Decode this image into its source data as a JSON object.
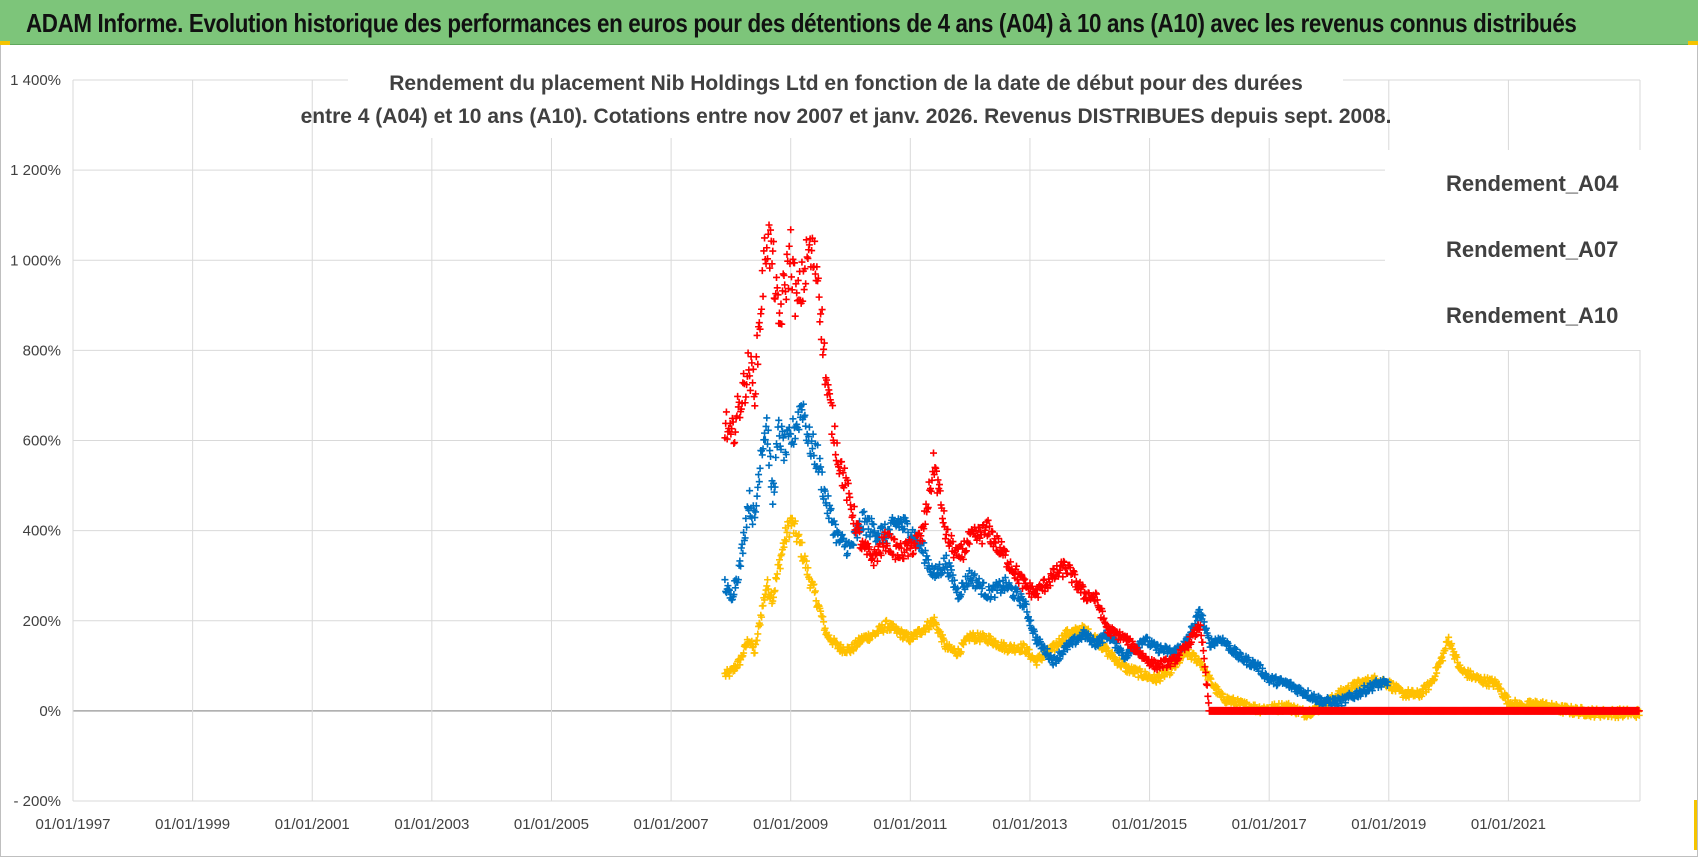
{
  "banner": {
    "title": "ADAM Informe. Evolution historique des performances en euros pour des détentions de 4 ans (A04) à 10 ans (A10) avec les revenus connus distribués"
  },
  "colors": {
    "banner_bg": "#7dc57a",
    "corner_accent": "#f5c400",
    "a04": "#ffc000",
    "a07": "#0070c0",
    "a10": "#ff0000",
    "grid": "#d9d9d9"
  },
  "chart_data": {
    "type": "scatter",
    "title_line1": "Rendement du placement Nib Holdings Ltd en fonction de la date de début pour des durées",
    "title_line2": "entre 4 (A04) et 10 ans (A10).  Cotations entre nov 2007 et janv. 2026. Revenus DISTRIBUES depuis sept. 2008.",
    "xlim": [
      1997.0,
      2023.2
    ],
    "ylim": [
      -200,
      1400
    ],
    "y_ticks": [
      -200,
      0,
      200,
      400,
      600,
      800,
      1000,
      1200,
      1400
    ],
    "y_tick_labels": [
      "- 200%",
      "0%",
      "200%",
      "400%",
      "600%",
      "800%",
      "1 000%",
      "1 200%",
      "1 400%"
    ],
    "x_ticks": [
      1997,
      1999,
      2001,
      2003,
      2005,
      2007,
      2009,
      2011,
      2013,
      2015,
      2017,
      2019,
      2021
    ],
    "x_tick_labels": [
      "01/01/1997",
      "01/01/1999",
      "01/01/2001",
      "01/01/2003",
      "01/01/2005",
      "01/01/2007",
      "01/01/2009",
      "01/01/2011",
      "01/01/2013",
      "01/01/2015",
      "01/01/2017",
      "01/01/2019",
      "01/01/2021"
    ],
    "legend_position": "top-right",
    "series": [
      {
        "name": "Rendement_A04",
        "color": "#ffc000",
        "points": [
          [
            2007.9,
            80
          ],
          [
            2008.0,
            85
          ],
          [
            2008.15,
            110
          ],
          [
            2008.3,
            160
          ],
          [
            2008.4,
            130
          ],
          [
            2008.5,
            210
          ],
          [
            2008.6,
            280
          ],
          [
            2008.7,
            250
          ],
          [
            2008.8,
            320
          ],
          [
            2008.9,
            380
          ],
          [
            2009.0,
            420
          ],
          [
            2009.1,
            390
          ],
          [
            2009.2,
            350
          ],
          [
            2009.3,
            300
          ],
          [
            2009.45,
            240
          ],
          [
            2009.6,
            170
          ],
          [
            2009.8,
            140
          ],
          [
            2010.0,
            135
          ],
          [
            2010.2,
            160
          ],
          [
            2010.4,
            170
          ],
          [
            2010.6,
            190
          ],
          [
            2010.8,
            175
          ],
          [
            2011.0,
            160
          ],
          [
            2011.2,
            180
          ],
          [
            2011.4,
            200
          ],
          [
            2011.6,
            140
          ],
          [
            2011.8,
            130
          ],
          [
            2012.0,
            165
          ],
          [
            2012.3,
            160
          ],
          [
            2012.6,
            140
          ],
          [
            2012.9,
            140
          ],
          [
            2013.1,
            110
          ],
          [
            2013.4,
            140
          ],
          [
            2013.6,
            170
          ],
          [
            2013.9,
            180
          ],
          [
            2014.1,
            160
          ],
          [
            2014.3,
            130
          ],
          [
            2014.6,
            95
          ],
          [
            2014.9,
            80
          ],
          [
            2015.1,
            70
          ],
          [
            2015.4,
            95
          ],
          [
            2015.6,
            130
          ],
          [
            2015.85,
            110
          ],
          [
            2016.0,
            70
          ],
          [
            2016.2,
            30
          ],
          [
            2016.5,
            15
          ],
          [
            2016.8,
            5
          ],
          [
            2017.0,
            5
          ],
          [
            2017.3,
            10
          ],
          [
            2017.6,
            -5
          ],
          [
            2017.9,
            10
          ],
          [
            2018.2,
            40
          ],
          [
            2018.5,
            60
          ],
          [
            2018.8,
            70
          ],
          [
            2019.0,
            60
          ],
          [
            2019.2,
            40
          ],
          [
            2019.5,
            35
          ],
          [
            2019.7,
            60
          ],
          [
            2019.9,
            120
          ],
          [
            2020.0,
            160
          ],
          [
            2020.2,
            90
          ],
          [
            2020.5,
            70
          ],
          [
            2020.8,
            60
          ],
          [
            2021.0,
            20
          ],
          [
            2021.2,
            10
          ],
          [
            2021.5,
            15
          ],
          [
            2021.8,
            5
          ],
          [
            2022.1,
            0
          ],
          [
            2022.5,
            -5
          ],
          [
            2022.9,
            -5
          ],
          [
            2023.2,
            -5
          ]
        ]
      },
      {
        "name": "Rendement_A07",
        "color": "#0070c0",
        "points": [
          [
            2007.9,
            280
          ],
          [
            2008.0,
            250
          ],
          [
            2008.15,
            320
          ],
          [
            2008.3,
            470
          ],
          [
            2008.4,
            420
          ],
          [
            2008.5,
            580
          ],
          [
            2008.6,
            640
          ],
          [
            2008.7,
            470
          ],
          [
            2008.8,
            620
          ],
          [
            2008.9,
            580
          ],
          [
            2009.0,
            600
          ],
          [
            2009.1,
            640
          ],
          [
            2009.2,
            680
          ],
          [
            2009.3,
            600
          ],
          [
            2009.45,
            560
          ],
          [
            2009.6,
            460
          ],
          [
            2009.8,
            380
          ],
          [
            2010.0,
            360
          ],
          [
            2010.2,
            420
          ],
          [
            2010.4,
            400
          ],
          [
            2010.6,
            390
          ],
          [
            2010.8,
            420
          ],
          [
            2011.0,
            400
          ],
          [
            2011.2,
            360
          ],
          [
            2011.4,
            300
          ],
          [
            2011.6,
            330
          ],
          [
            2011.8,
            260
          ],
          [
            2012.0,
            300
          ],
          [
            2012.3,
            260
          ],
          [
            2012.6,
            280
          ],
          [
            2012.9,
            240
          ],
          [
            2013.1,
            160
          ],
          [
            2013.4,
            110
          ],
          [
            2013.6,
            140
          ],
          [
            2013.9,
            170
          ],
          [
            2014.1,
            150
          ],
          [
            2014.3,
            170
          ],
          [
            2014.6,
            120
          ],
          [
            2014.9,
            160
          ],
          [
            2015.1,
            140
          ],
          [
            2015.4,
            130
          ],
          [
            2015.6,
            150
          ],
          [
            2015.85,
            220
          ],
          [
            2016.0,
            150
          ],
          [
            2016.2,
            160
          ],
          [
            2016.5,
            120
          ],
          [
            2016.8,
            100
          ],
          [
            2017.0,
            70
          ],
          [
            2017.3,
            60
          ],
          [
            2017.6,
            40
          ],
          [
            2017.9,
            20
          ],
          [
            2018.2,
            20
          ],
          [
            2018.5,
            40
          ],
          [
            2018.8,
            60
          ],
          [
            2019.0,
            60
          ]
        ]
      },
      {
        "name": "Rendement_A10",
        "color": "#ff0000",
        "points": [
          [
            2007.9,
            640
          ],
          [
            2008.0,
            600
          ],
          [
            2008.15,
            680
          ],
          [
            2008.3,
            760
          ],
          [
            2008.4,
            720
          ],
          [
            2008.5,
            900
          ],
          [
            2008.6,
            1060
          ],
          [
            2008.7,
            1000
          ],
          [
            2008.8,
            860
          ],
          [
            2008.9,
            940
          ],
          [
            2009.0,
            1020
          ],
          [
            2009.1,
            900
          ],
          [
            2009.2,
            950
          ],
          [
            2009.3,
            1020
          ],
          [
            2009.45,
            980
          ],
          [
            2009.6,
            720
          ],
          [
            2009.8,
            560
          ],
          [
            2010.0,
            460
          ],
          [
            2010.2,
            360
          ],
          [
            2010.4,
            340
          ],
          [
            2010.6,
            380
          ],
          [
            2010.8,
            350
          ],
          [
            2011.0,
            360
          ],
          [
            2011.2,
            390
          ],
          [
            2011.4,
            550
          ],
          [
            2011.6,
            390
          ],
          [
            2011.8,
            340
          ],
          [
            2012.0,
            380
          ],
          [
            2012.3,
            400
          ],
          [
            2012.6,
            340
          ],
          [
            2012.9,
            280
          ],
          [
            2013.1,
            260
          ],
          [
            2013.4,
            300
          ],
          [
            2013.6,
            320
          ],
          [
            2013.9,
            260
          ],
          [
            2014.1,
            250
          ],
          [
            2014.3,
            180
          ],
          [
            2014.6,
            160
          ],
          [
            2014.9,
            120
          ],
          [
            2015.1,
            100
          ],
          [
            2015.4,
            110
          ],
          [
            2015.6,
            140
          ],
          [
            2015.85,
            190
          ],
          [
            2016.0,
            0
          ],
          [
            2017.0,
            0
          ],
          [
            2018.0,
            0
          ],
          [
            2019.0,
            0
          ],
          [
            2020.0,
            0
          ],
          [
            2021.0,
            0
          ],
          [
            2022.0,
            0
          ],
          [
            2023.2,
            0
          ]
        ]
      }
    ]
  }
}
